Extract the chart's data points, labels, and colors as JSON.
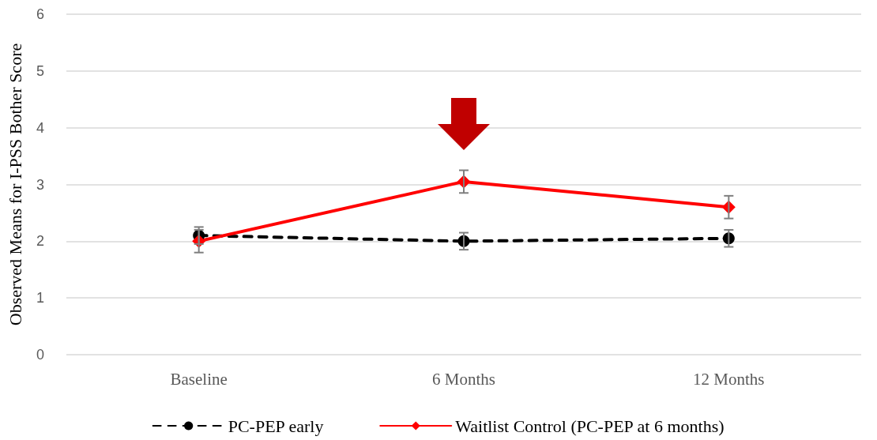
{
  "chart_data": {
    "type": "line",
    "ylabel": "Observed Means for I-PSS Bother Score",
    "categories": [
      "Baseline",
      "6 Months",
      "12 Months"
    ],
    "series": [
      {
        "name": "PC-PEP early",
        "color": "#000000",
        "values": [
          2.1,
          2.0,
          2.05
        ],
        "errors": [
          0.15,
          0.15,
          0.15
        ],
        "marker": "circle",
        "line_style": "dashed"
      },
      {
        "name": "Waitlist Control (PC-PEP at 6 months)",
        "color": "#ff0000",
        "values": [
          2.0,
          3.05,
          2.6
        ],
        "errors": [
          0.2,
          0.2,
          0.2
        ],
        "marker": "diamond",
        "line_style": "solid"
      }
    ],
    "ylim": [
      0,
      6
    ],
    "yticks": [
      0,
      1,
      2,
      3,
      4,
      5,
      6
    ],
    "grid": "y",
    "legend": "bottom"
  }
}
